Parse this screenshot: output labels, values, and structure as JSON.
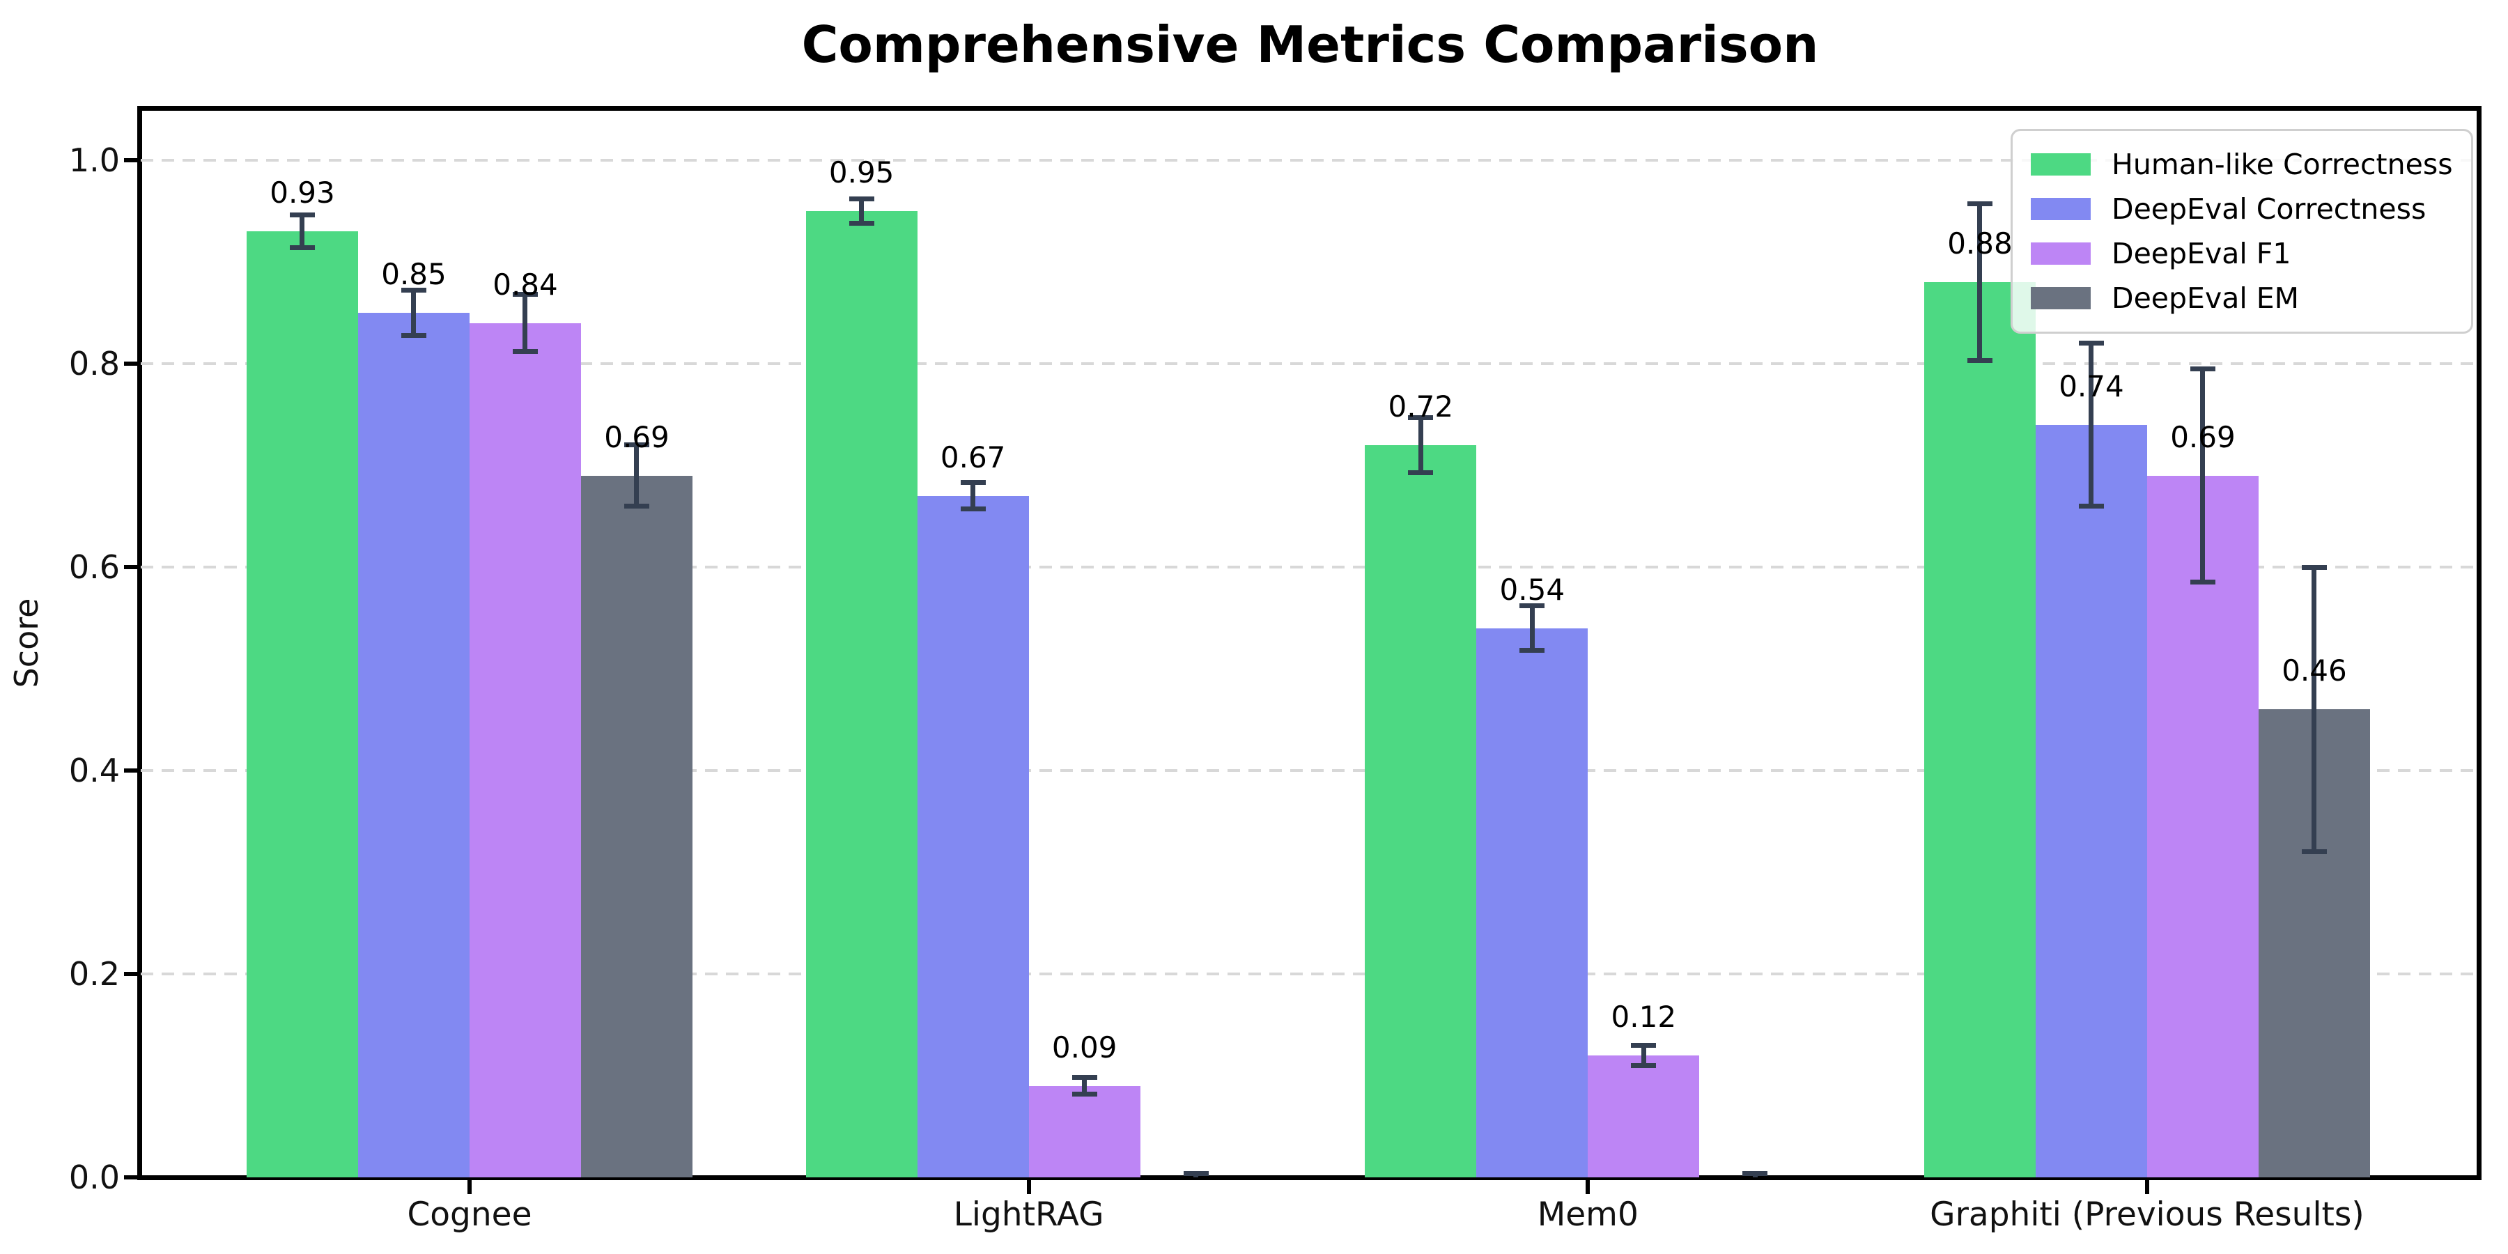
{
  "title": "Comprehensive Metrics Comparison",
  "ylabel": "Score",
  "chart_data": {
    "type": "bar",
    "categories": [
      "Cognee",
      "LightRAG",
      "Mem0",
      "Graphiti (Previous Results)"
    ],
    "series": [
      {
        "name": "Human-like Correctness",
        "color": "#4dd983",
        "values": [
          0.93,
          0.95,
          0.72,
          0.88
        ],
        "errors": [
          0.016,
          0.012,
          0.027,
          0.077
        ],
        "labels": [
          "0.93",
          "0.95",
          "0.72",
          "0.88"
        ]
      },
      {
        "name": "DeepEval Correctness",
        "color": "#8289f2",
        "values": [
          0.85,
          0.67,
          0.54,
          0.74
        ],
        "errors": [
          0.022,
          0.013,
          0.022,
          0.08
        ],
        "labels": [
          "0.85",
          "0.67",
          "0.54",
          "0.74"
        ]
      },
      {
        "name": "DeepEval F1",
        "color": "#bd85f5",
        "values": [
          0.84,
          0.09,
          0.12,
          0.69
        ],
        "errors": [
          0.028,
          0.008,
          0.01,
          0.105
        ],
        "labels": [
          "0.84",
          "0.09",
          "0.12",
          "0.69"
        ]
      },
      {
        "name": "DeepEval EM",
        "color": "#6a7280",
        "values": [
          0.69,
          0.0,
          0.0,
          0.46
        ],
        "errors": [
          0.03,
          0.004,
          0.004,
          0.14
        ],
        "labels": [
          "0.69",
          "",
          "",
          "0.46"
        ]
      }
    ],
    "yticks": [
      "0.0",
      "0.2",
      "0.4",
      "0.6",
      "0.8",
      "1.0"
    ],
    "ylim": [
      0.0,
      1.05
    ],
    "grid": {
      "axis": "y",
      "style": "dashed",
      "color": "#d8d8d8"
    },
    "legend_position": "upper right",
    "error_bar_color": "#343f51",
    "background": "#ffffff"
  }
}
